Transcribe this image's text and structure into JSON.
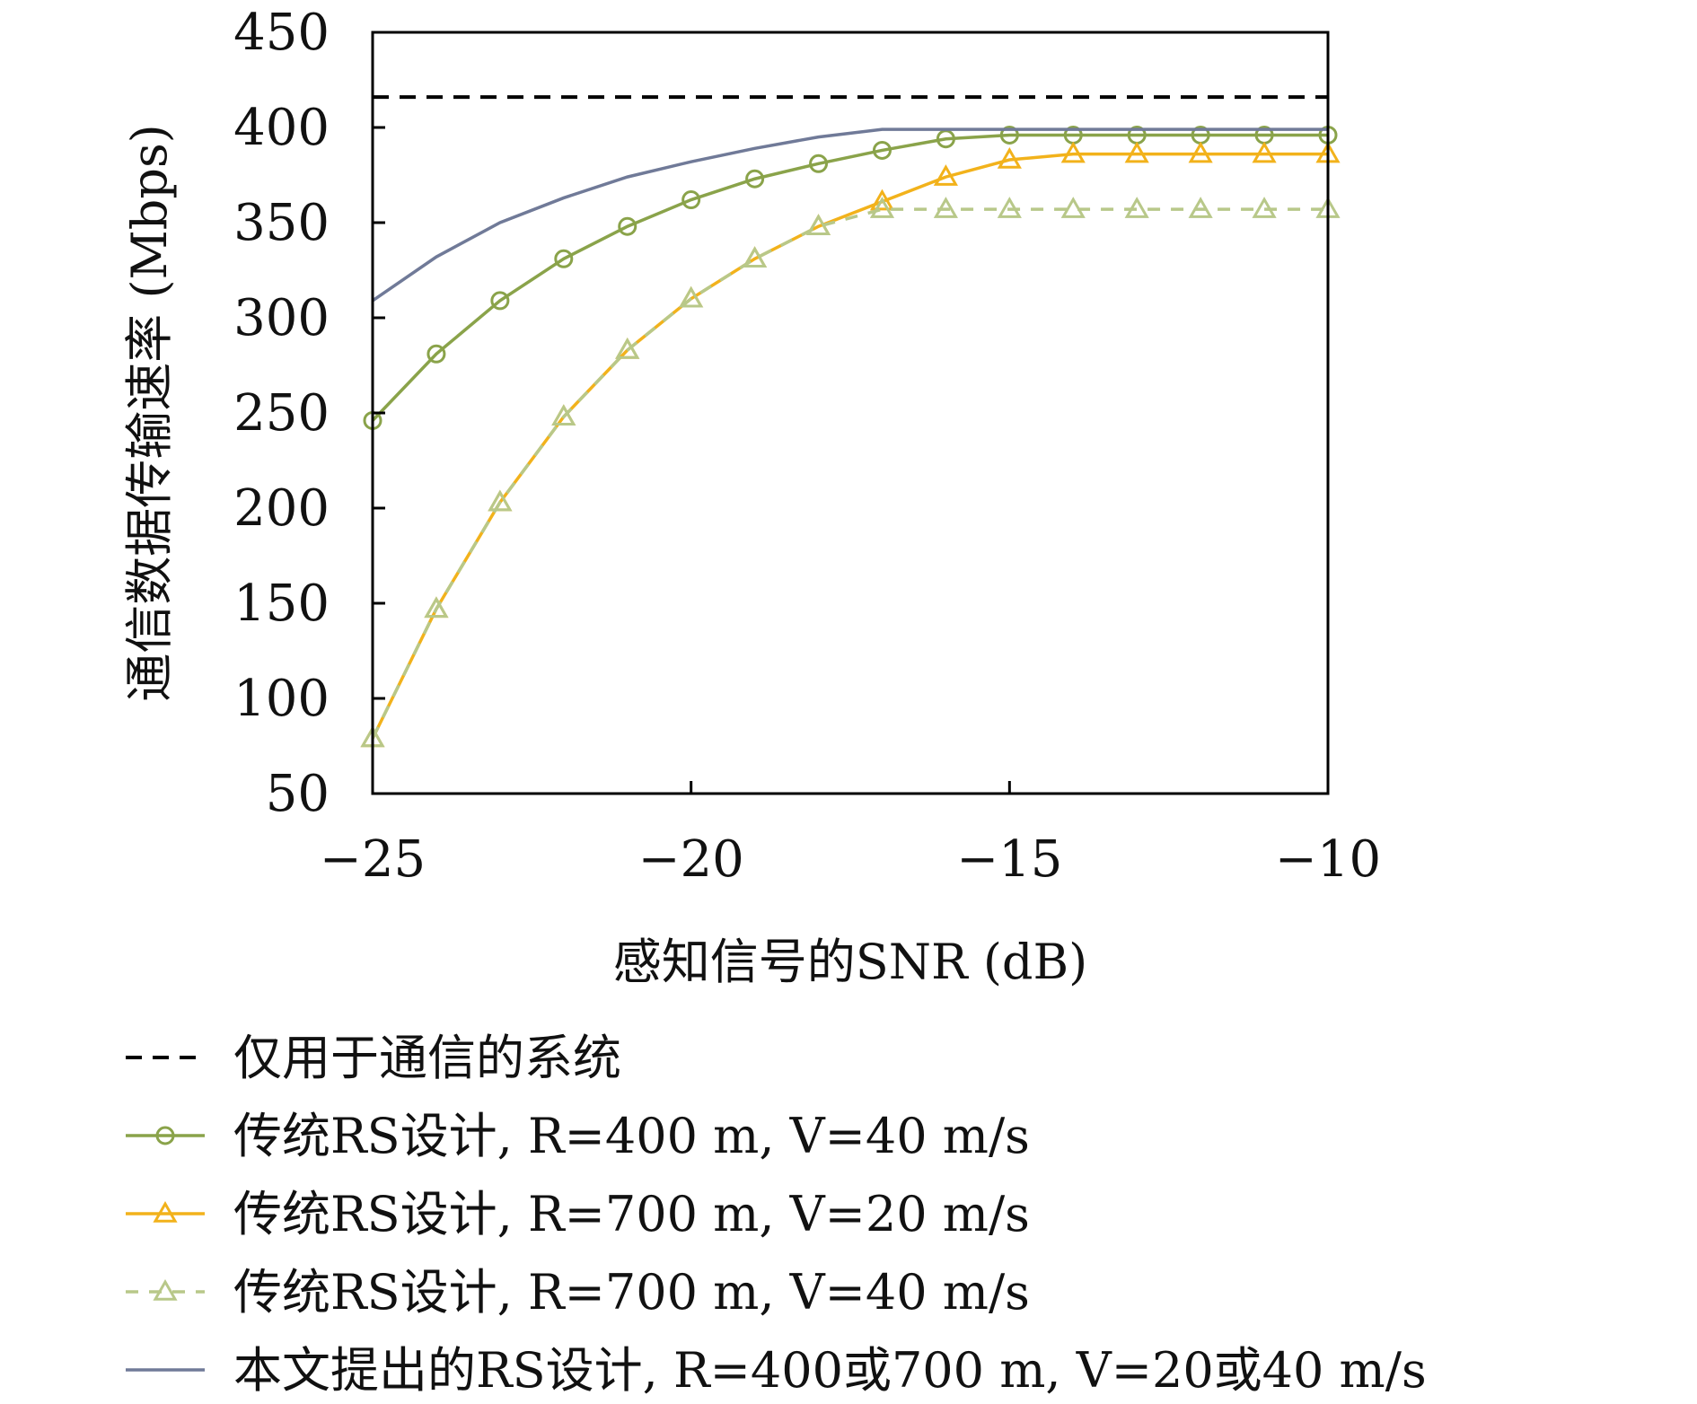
{
  "chart_data": {
    "type": "line",
    "xlabel": "感知信号的SNR (dB)",
    "ylabel": "通信数据传输速率 (Mbps)",
    "xlim": [
      -25,
      -10
    ],
    "ylim": [
      50,
      450
    ],
    "xticks": [
      -25,
      -20,
      -15,
      -10
    ],
    "xtick_labels": [
      "−25",
      "−20",
      "−15",
      "−10"
    ],
    "yticks": [
      50,
      100,
      150,
      200,
      250,
      300,
      350,
      400,
      450
    ],
    "grid": false,
    "legend_position": "bottom",
    "x": [
      -25,
      -24,
      -23,
      -22,
      -21,
      -20,
      -19,
      -18,
      -17,
      -16,
      -15,
      -14,
      -13,
      -12,
      -11,
      -10
    ],
    "series": [
      {
        "name": "仅用于通信的系统",
        "style": "dashed",
        "marker": "none",
        "color": "#000000",
        "values": [
          416,
          416,
          416,
          416,
          416,
          416,
          416,
          416,
          416,
          416,
          416,
          416,
          416,
          416,
          416,
          416
        ]
      },
      {
        "name": "传统RS设计, R=400 m, V=40 m/s",
        "style": "solid",
        "marker": "circle",
        "color": "#8aa34a",
        "values": [
          246,
          281,
          309,
          331,
          348,
          362,
          373,
          381,
          388,
          394,
          396,
          396,
          396,
          396,
          396,
          396
        ]
      },
      {
        "name": "传统RS设计, R=700 m, V=20 m/s",
        "style": "solid",
        "marker": "triangle",
        "color": "#f2b21b",
        "values": [
          79,
          147,
          203,
          248,
          283,
          310,
          331,
          348,
          361,
          374,
          383,
          386,
          386,
          386,
          386,
          386
        ]
      },
      {
        "name": "传统RS设计, R=700 m, V=40 m/s",
        "style": "dashed",
        "marker": "triangle",
        "color": "#b8c889",
        "values": [
          79,
          147,
          203,
          248,
          283,
          310,
          331,
          348,
          357,
          357,
          357,
          357,
          357,
          357,
          357,
          357
        ]
      },
      {
        "name": "本文提出的RS设计, R=400或700 m, V=20或40 m/s",
        "style": "solid",
        "marker": "none",
        "color": "#707a98",
        "values": [
          309,
          332,
          350,
          363,
          374,
          382,
          389,
          395,
          399,
          399,
          399,
          399,
          399,
          399,
          399,
          399
        ]
      }
    ]
  }
}
